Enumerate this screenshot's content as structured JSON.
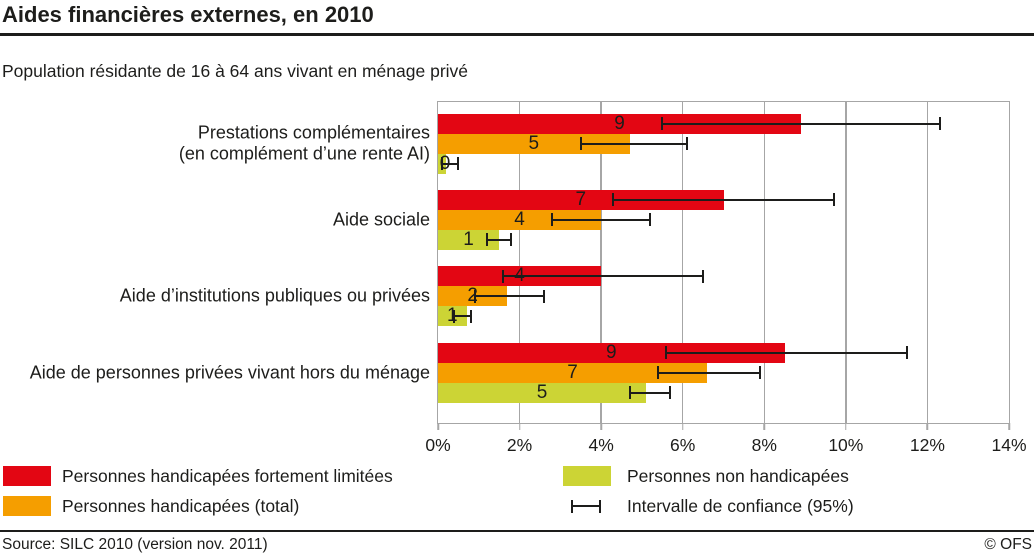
{
  "header": {
    "title": "Aides financières externes, en 2010"
  },
  "subtitle": "Population résidante de 16 à 64 ans vivant en ménage privé",
  "colors": {
    "red": "#e30613",
    "orange": "#f59e00",
    "green": "#ccd435",
    "grid": "#a6a6a6",
    "text": "#1d1d1b"
  },
  "chart_data": {
    "type": "bar",
    "orientation": "horizontal",
    "title": "Aides financières externes, en 2010",
    "subtitle": "Population résidante de 16 à 64 ans vivant en ménage privé",
    "xlabel": "",
    "ylabel": "",
    "xlim": [
      0,
      14
    ],
    "x_tick_values": [
      0,
      2,
      4,
      6,
      8,
      10,
      12,
      14
    ],
    "x_tick_labels": [
      "0%",
      "2%",
      "4%",
      "6%",
      "8%",
      "10%",
      "12%",
      "14%"
    ],
    "grid": true,
    "legend_position": "bottom",
    "categories": [
      "Prestations complémentaires (en complément d’une rente AI)",
      "Aide sociale",
      "Aide d’institutions publiques ou privées",
      "Aide de personnes privées vivant hors du ménage"
    ],
    "categories_display": [
      [
        "Prestations complémentaires",
        "(en complément d’une rente AI)"
      ],
      [
        "Aide sociale"
      ],
      [
        "Aide d’institutions publiques ou privées"
      ],
      [
        "Aide de personnes privées vivant hors du ménage"
      ]
    ],
    "series": [
      {
        "name": "Personnes handicapées fortement limitées",
        "color_key": "red",
        "values": [
          8.9,
          7.0,
          4.0,
          8.5
        ],
        "data_labels": [
          "9",
          "7",
          "4",
          "9"
        ],
        "ci_low": [
          5.5,
          4.3,
          1.6,
          5.6
        ],
        "ci_high": [
          12.3,
          9.7,
          6.5,
          11.5
        ]
      },
      {
        "name": "Personnes handicapées (total)",
        "color_key": "orange",
        "values": [
          4.7,
          4.0,
          1.7,
          6.6
        ],
        "data_labels": [
          "5",
          "4",
          "2",
          "7"
        ],
        "ci_low": [
          3.5,
          2.8,
          0.9,
          5.4
        ],
        "ci_high": [
          6.1,
          5.2,
          2.6,
          7.9
        ]
      },
      {
        "name": "Personnes non handicapées",
        "color_key": "green",
        "values": [
          0.2,
          1.5,
          0.7,
          5.1
        ],
        "data_labels": [
          "0",
          "1",
          "1",
          "5"
        ],
        "ci_low": [
          0.1,
          1.2,
          0.4,
          4.7
        ],
        "ci_high": [
          0.5,
          1.8,
          0.8,
          5.7
        ]
      }
    ],
    "legend": [
      {
        "label": "Personnes handicapées fortement limitées",
        "color_key": "red"
      },
      {
        "label": "Personnes handicapées (total)",
        "color_key": "orange"
      },
      {
        "label": "Personnes non handicapées",
        "color_key": "green"
      },
      {
        "label": "Intervalle de confiance (95%)",
        "symbol": "error-bar"
      }
    ]
  },
  "footer": {
    "source": "Source: SILC 2010 (version nov. 2011)",
    "copyright": "© OFS"
  }
}
